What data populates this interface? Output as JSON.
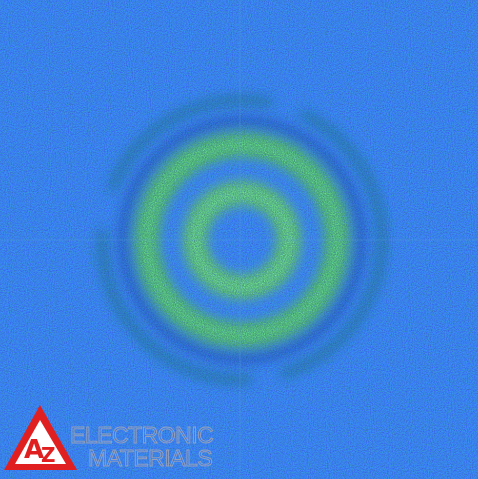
{
  "logo": {
    "letter_a": "A",
    "letter_z": "Z",
    "line1": "ELECTRONIC",
    "line2": "MATERIALS"
  }
}
